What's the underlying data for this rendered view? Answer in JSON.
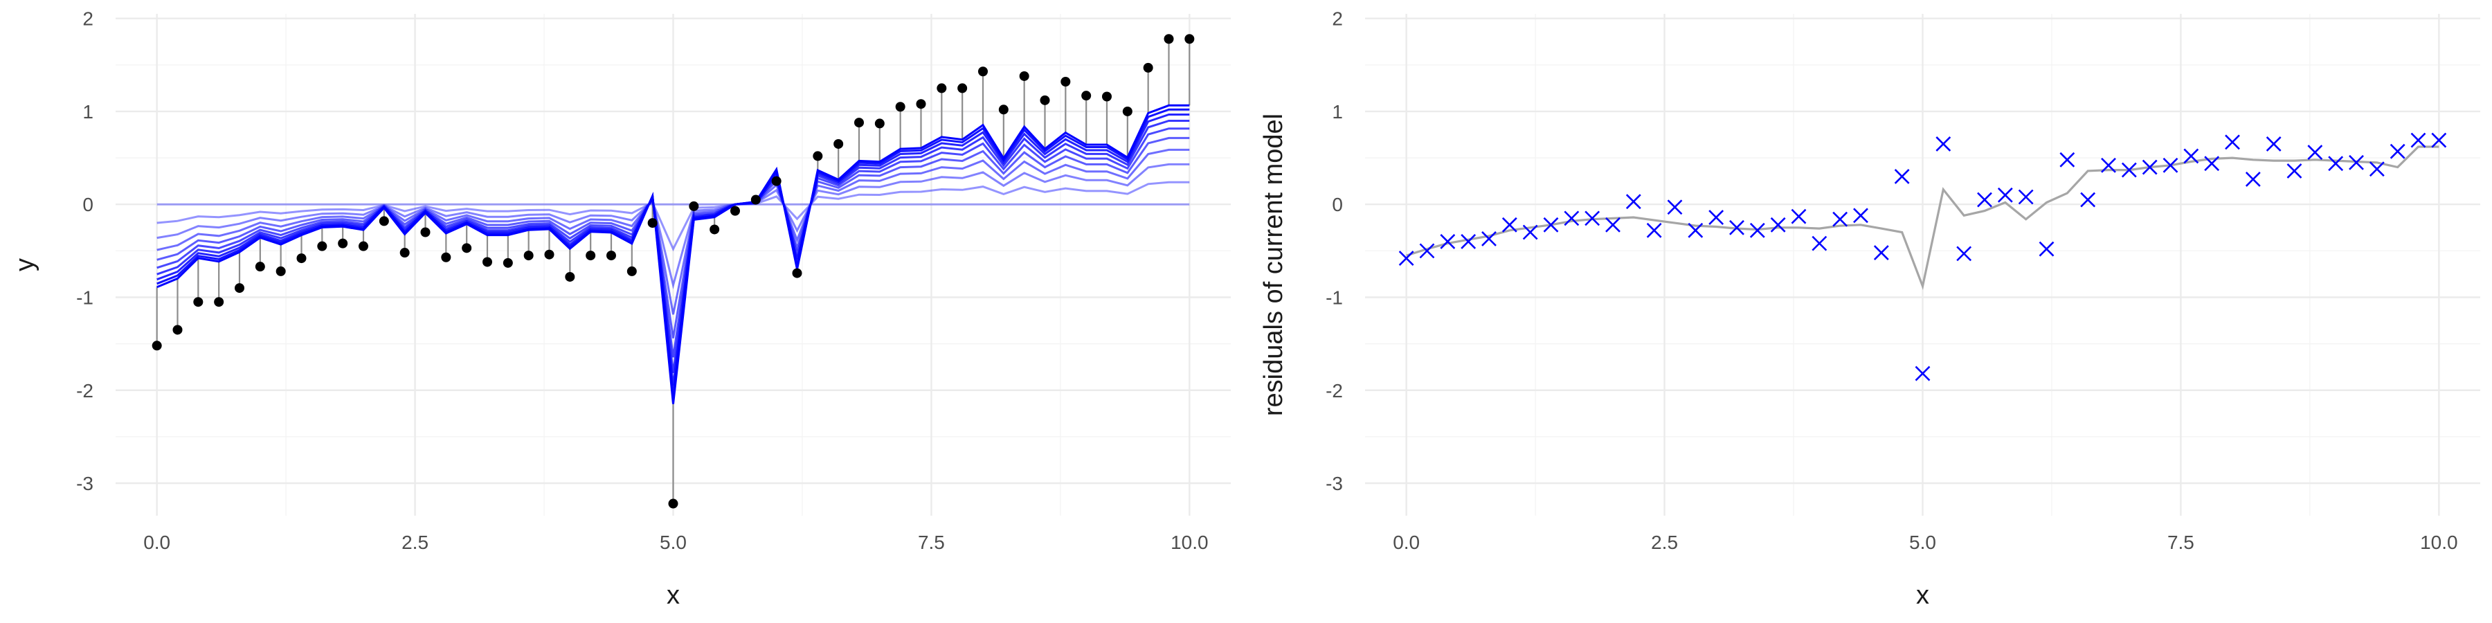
{
  "chart_data": [
    {
      "type": "line",
      "panel": "left",
      "xlabel": "x",
      "ylabel": "y",
      "xlim": [
        -0.4,
        10.4
      ],
      "ylim": [
        -3.35,
        2.05
      ],
      "x_ticks": [
        0,
        2.5,
        5,
        7.5,
        10
      ],
      "x_tick_labels": [
        "0.0",
        "2.5",
        "5.0",
        "7.5",
        "10.0"
      ],
      "y_ticks": [
        -3,
        -2,
        -1,
        0,
        1,
        2
      ],
      "y_tick_labels": [
        "-3",
        "-2",
        "-1",
        "0",
        "1",
        "2"
      ],
      "grid": true,
      "points": {
        "x": [
          0,
          0.2,
          0.4,
          0.6,
          0.8,
          1.0,
          1.2,
          1.4,
          1.6,
          1.8,
          2.0,
          2.2,
          2.4,
          2.6,
          2.8,
          3.0,
          3.2,
          3.4,
          3.6,
          3.8,
          4.0,
          4.2,
          4.4,
          4.6,
          4.8,
          5.0,
          5.2,
          5.4,
          5.6,
          5.8,
          6.0,
          6.2,
          6.4,
          6.6,
          6.8,
          7.0,
          7.2,
          7.4,
          7.6,
          7.8,
          8.0,
          8.2,
          8.4,
          8.6,
          8.8,
          9.0,
          9.2,
          9.4,
          9.6,
          9.8,
          10.0
        ],
        "y": [
          -1.52,
          -1.35,
          -1.05,
          -1.05,
          -0.9,
          -0.67,
          -0.72,
          -0.58,
          -0.45,
          -0.42,
          -0.45,
          -0.18,
          -0.52,
          -0.3,
          -0.57,
          -0.47,
          -0.62,
          -0.63,
          -0.55,
          -0.54,
          -0.78,
          -0.55,
          -0.55,
          -0.72,
          -0.2,
          -3.22,
          -0.02,
          -0.27,
          -0.07,
          0.05,
          0.25,
          -0.74,
          0.52,
          0.65,
          0.88,
          0.87,
          1.05,
          1.08,
          1.25,
          1.25,
          1.43,
          1.02,
          1.38,
          1.12,
          1.32,
          1.17,
          1.16,
          1.0,
          1.47,
          1.78,
          1.78
        ]
      },
      "boosting_iterations": 10,
      "series_color": "#0000ff"
    },
    {
      "type": "scatter",
      "panel": "right",
      "xlabel": "x",
      "ylabel": "residuals of current model",
      "xlim": [
        -0.4,
        10.4
      ],
      "ylim": [
        -3.35,
        2.05
      ],
      "x_ticks": [
        0,
        2.5,
        5,
        7.5,
        10
      ],
      "x_tick_labels": [
        "0.0",
        "2.5",
        "5.0",
        "7.5",
        "10.0"
      ],
      "y_ticks": [
        -3,
        -2,
        -1,
        0,
        1,
        2
      ],
      "y_tick_labels": [
        "-3",
        "-2",
        "-1",
        "0",
        "1",
        "2"
      ],
      "grid": true,
      "residuals": {
        "x": [
          0,
          0.2,
          0.4,
          0.6,
          0.8,
          1.0,
          1.2,
          1.4,
          1.6,
          1.8,
          2.0,
          2.2,
          2.4,
          2.6,
          2.8,
          3.0,
          3.2,
          3.4,
          3.6,
          3.8,
          4.0,
          4.2,
          4.4,
          4.6,
          4.8,
          5.0,
          5.2,
          5.4,
          5.6,
          5.8,
          6.0,
          6.2,
          6.4,
          6.6,
          6.8,
          7.0,
          7.2,
          7.4,
          7.6,
          7.8,
          8.0,
          8.2,
          8.4,
          8.6,
          8.8,
          9.0,
          9.2,
          9.4,
          9.6,
          9.8,
          10.0
        ],
        "y": [
          -0.58,
          -0.5,
          -0.4,
          -0.4,
          -0.37,
          -0.22,
          -0.3,
          -0.22,
          -0.15,
          -0.15,
          -0.22,
          0.03,
          -0.28,
          -0.03,
          -0.28,
          -0.14,
          -0.25,
          -0.28,
          -0.22,
          -0.13,
          -0.42,
          -0.16,
          -0.12,
          -0.52,
          0.3,
          -1.82,
          0.65,
          -0.53,
          0.05,
          0.1,
          0.08,
          -0.48,
          0.48,
          0.05,
          0.42,
          0.37,
          0.4,
          0.42,
          0.52,
          0.44,
          0.67,
          0.27,
          0.65,
          0.36,
          0.56,
          0.44,
          0.45,
          0.38,
          0.57,
          0.69,
          0.69
        ]
      },
      "fit_line": {
        "x": [
          0,
          0.2,
          0.4,
          0.6,
          0.8,
          1.0,
          1.2,
          1.4,
          1.6,
          1.8,
          2.0,
          2.2,
          2.4,
          2.6,
          2.8,
          3.0,
          3.2,
          3.4,
          3.6,
          3.8,
          4.0,
          4.2,
          4.4,
          4.6,
          4.8,
          5.0,
          5.2,
          5.4,
          5.6,
          5.8,
          6.0,
          6.2,
          6.4,
          6.6,
          6.8,
          7.0,
          7.2,
          7.4,
          7.6,
          7.8,
          8.0,
          8.2,
          8.4,
          8.6,
          8.8,
          9.0,
          9.2,
          9.4,
          9.6,
          9.8,
          10.0
        ],
        "y": [
          -0.55,
          -0.48,
          -0.42,
          -0.38,
          -0.34,
          -0.28,
          -0.25,
          -0.22,
          -0.18,
          -0.16,
          -0.15,
          -0.14,
          -0.17,
          -0.2,
          -0.23,
          -0.24,
          -0.26,
          -0.27,
          -0.25,
          -0.25,
          -0.26,
          -0.23,
          -0.22,
          -0.26,
          -0.3,
          -0.88,
          0.16,
          -0.12,
          -0.07,
          0.02,
          -0.16,
          0.02,
          0.12,
          0.36,
          0.37,
          0.37,
          0.4,
          0.42,
          0.46,
          0.49,
          0.5,
          0.48,
          0.47,
          0.47,
          0.48,
          0.47,
          0.46,
          0.45,
          0.4,
          0.62,
          0.62
        ]
      },
      "marker": "x",
      "marker_color": "#0000ff",
      "line_color": "#a6a6a6"
    }
  ]
}
